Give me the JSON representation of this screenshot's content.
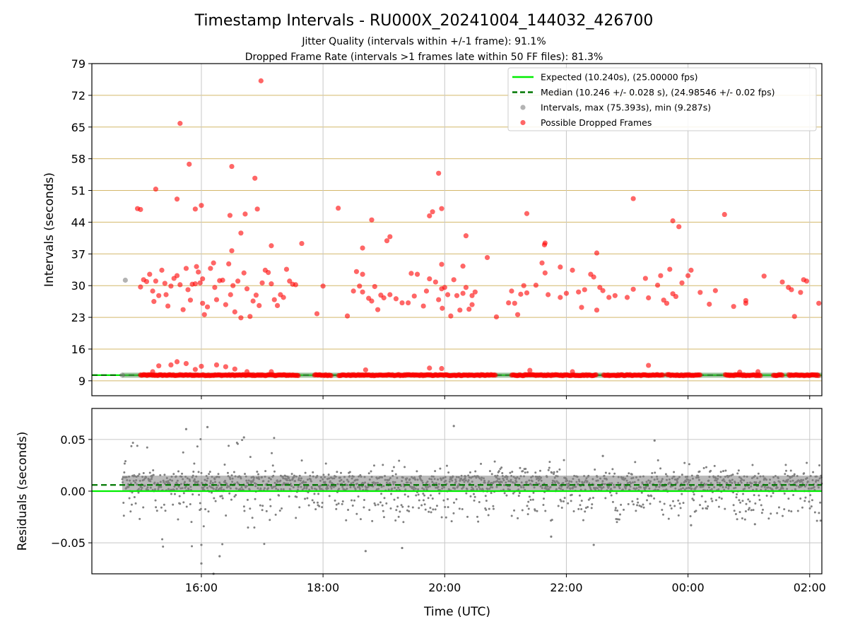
{
  "colors": {
    "expected": "#00ee00",
    "median": "#007700",
    "intervals": "#808080",
    "dropped": "#ff0000",
    "hgrid_top": "#d4b86a",
    "grid": "#c8c8c8",
    "band": "#4f8f4f"
  },
  "chart_data": [
    {
      "type": "scatter",
      "title": "Timestamp Intervals - RU000X_20241004_144032_426700",
      "subtitle_lines": [
        "Jitter Quality (intervals within +/-1 frame): 91.1%",
        "Dropped Frame Rate (intervals >1 frames late within 50 FF files): 81.3%"
      ],
      "xlabel": "",
      "ylabel": "Intervals (seconds)",
      "x_range_hours": [
        14.2,
        26.2
      ],
      "ylim": [
        5.7,
        79
      ],
      "yticks": [
        9,
        16,
        23,
        30,
        37,
        44,
        51,
        58,
        65,
        72,
        79
      ],
      "grid": "horizontal lines at y ticks, vertical lines at x ticks",
      "legend_position": "upper right",
      "legend": [
        {
          "kind": "line",
          "label": "Expected (10.240s), (25.00000 fps)"
        },
        {
          "kind": "dashed",
          "label": "Median (10.246 +/- 0.028 s), (24.98546 +/- 0.02 fps)"
        },
        {
          "kind": "dot-gray",
          "label": "Intervals, max (75.393s), min (9.287s)"
        },
        {
          "kind": "dot-red",
          "label": "Possible Dropped Frames"
        }
      ],
      "expected": 10.24,
      "median": 10.246,
      "median_line_range_hours": [
        14.2,
        24.6
      ],
      "baseline_gaps_hours": [
        [
          17.6,
          17.85
        ],
        [
          18.15,
          18.25
        ],
        [
          20.85,
          21.1
        ],
        [
          22.5,
          22.6
        ],
        [
          23.6,
          23.65
        ],
        [
          24.2,
          24.6
        ],
        [
          25.2,
          25.4
        ],
        [
          25.55,
          25.65
        ]
      ],
      "series": [
        {
          "name": "Intervals",
          "points": [
            [
              14.75,
              31.2
            ],
            [
              14.7,
              10.24
            ]
          ]
        },
        {
          "name": "Possible Dropped Frames",
          "points": [
            [
              14.95,
              47.0
            ],
            [
              15.0,
              46.8
            ],
            [
              15.25,
              51.3
            ],
            [
              15.6,
              49.1
            ],
            [
              15.8,
              56.8
            ],
            [
              15.9,
              46.9
            ],
            [
              16.0,
              47.7
            ],
            [
              15.65,
              65.8
            ],
            [
              16.5,
              56.3
            ],
            [
              16.88,
              53.7
            ],
            [
              16.98,
              75.2
            ],
            [
              16.47,
              45.5
            ],
            [
              16.72,
              45.8
            ],
            [
              16.92,
              46.9
            ],
            [
              16.65,
              41.6
            ],
            [
              16.5,
              37.7
            ],
            [
              17.15,
              38.8
            ],
            [
              17.65,
              39.3
            ],
            [
              18.25,
              47.1
            ],
            [
              18.8,
              44.5
            ],
            [
              19.1,
              40.8
            ],
            [
              19.05,
              39.9
            ],
            [
              18.65,
              38.3
            ],
            [
              19.75,
              45.4
            ],
            [
              19.8,
              46.3
            ],
            [
              19.9,
              54.8
            ],
            [
              19.95,
              47.0
            ],
            [
              20.35,
              41.0
            ],
            [
              20.7,
              36.2
            ],
            [
              21.35,
              45.9
            ],
            [
              21.65,
              39.4
            ],
            [
              21.64,
              39.0
            ],
            [
              21.9,
              34.1
            ],
            [
              22.5,
              37.2
            ],
            [
              23.1,
              49.2
            ],
            [
              23.75,
              44.3
            ],
            [
              23.85,
              43.0
            ],
            [
              24.6,
              45.7
            ],
            [
              19.95,
              34.7
            ],
            [
              20.3,
              34.3
            ],
            [
              15.0,
              29.7
            ],
            [
              15.05,
              31.3
            ],
            [
              15.1,
              30.9
            ],
            [
              15.15,
              32.5
            ],
            [
              15.2,
              28.8
            ],
            [
              15.22,
              26.5
            ],
            [
              15.25,
              31.0
            ],
            [
              15.3,
              27.8
            ],
            [
              15.35,
              33.4
            ],
            [
              15.4,
              30.5
            ],
            [
              15.45,
              25.5
            ],
            [
              15.5,
              29.9
            ],
            [
              15.55,
              31.6
            ],
            [
              15.6,
              32.2
            ],
            [
              15.65,
              30.2
            ],
            [
              15.7,
              24.7
            ],
            [
              15.75,
              33.8
            ],
            [
              15.78,
              29.1
            ],
            [
              15.82,
              26.8
            ],
            [
              15.85,
              30.3
            ],
            [
              15.9,
              30.4
            ],
            [
              15.92,
              34.2
            ],
            [
              15.95,
              33.0
            ],
            [
              15.98,
              30.6
            ],
            [
              16.02,
              26.1
            ],
            [
              16.05,
              23.6
            ],
            [
              16.1,
              25.3
            ],
            [
              16.15,
              33.8
            ],
            [
              16.2,
              35.0
            ],
            [
              16.25,
              26.9
            ],
            [
              16.3,
              31.1
            ],
            [
              16.35,
              31.2
            ],
            [
              16.4,
              25.8
            ],
            [
              16.45,
              34.8
            ],
            [
              16.48,
              28.0
            ],
            [
              16.52,
              30.0
            ],
            [
              16.55,
              24.2
            ],
            [
              16.6,
              31.0
            ],
            [
              16.65,
              22.9
            ],
            [
              16.7,
              32.8
            ],
            [
              16.75,
              29.3
            ],
            [
              16.8,
              23.2
            ],
            [
              16.85,
              26.6
            ],
            [
              16.9,
              27.9
            ],
            [
              16.95,
              25.6
            ],
            [
              17.0,
              30.6
            ],
            [
              17.05,
              33.4
            ],
            [
              17.1,
              32.9
            ],
            [
              17.15,
              30.4
            ],
            [
              17.2,
              26.9
            ],
            [
              17.25,
              25.6
            ],
            [
              17.3,
              28.0
            ],
            [
              17.35,
              27.4
            ],
            [
              17.4,
              33.6
            ],
            [
              17.45,
              31.0
            ],
            [
              17.5,
              30.3
            ],
            [
              17.55,
              30.2
            ],
            [
              16.02,
              31.5
            ],
            [
              15.42,
              28.0
            ],
            [
              16.22,
              29.6
            ],
            [
              17.9,
              23.8
            ],
            [
              18.0,
              29.9
            ],
            [
              18.4,
              23.3
            ],
            [
              18.5,
              28.8
            ],
            [
              18.55,
              33.1
            ],
            [
              18.6,
              29.9
            ],
            [
              18.65,
              32.5
            ],
            [
              18.65,
              28.6
            ],
            [
              18.75,
              27.2
            ],
            [
              18.8,
              26.6
            ],
            [
              18.85,
              29.8
            ],
            [
              18.9,
              24.7
            ],
            [
              18.95,
              27.9
            ],
            [
              19.0,
              27.3
            ],
            [
              19.1,
              28.0
            ],
            [
              19.2,
              27.1
            ],
            [
              19.3,
              26.2
            ],
            [
              19.4,
              26.2
            ],
            [
              19.45,
              32.7
            ],
            [
              19.5,
              27.7
            ],
            [
              19.55,
              32.5
            ],
            [
              19.65,
              25.5
            ],
            [
              19.7,
              28.8
            ],
            [
              19.75,
              31.5
            ],
            [
              19.85,
              30.8
            ],
            [
              19.9,
              26.9
            ],
            [
              19.95,
              29.3
            ],
            [
              20.0,
              29.6
            ],
            [
              20.05,
              28.0
            ],
            [
              20.1,
              23.3
            ],
            [
              20.15,
              31.3
            ],
            [
              20.2,
              27.8
            ],
            [
              20.25,
              24.6
            ],
            [
              20.3,
              28.3
            ],
            [
              20.35,
              29.6
            ],
            [
              20.4,
              24.8
            ],
            [
              20.45,
              27.8
            ],
            [
              20.45,
              25.8
            ],
            [
              20.5,
              28.6
            ],
            [
              19.96,
              25.0
            ],
            [
              20.85,
              23.1
            ],
            [
              21.05,
              26.2
            ],
            [
              21.1,
              28.8
            ],
            [
              21.2,
              23.6
            ],
            [
              21.25,
              28.1
            ],
            [
              21.3,
              30.0
            ],
            [
              21.35,
              28.4
            ],
            [
              21.5,
              30.1
            ],
            [
              21.6,
              35.0
            ],
            [
              21.65,
              32.8
            ],
            [
              21.7,
              28.0
            ],
            [
              21.9,
              27.4
            ],
            [
              22.0,
              28.3
            ],
            [
              22.1,
              33.4
            ],
            [
              22.2,
              28.6
            ],
            [
              22.25,
              25.2
            ],
            [
              22.3,
              29.1
            ],
            [
              22.4,
              32.5
            ],
            [
              22.45,
              31.9
            ],
            [
              22.5,
              24.6
            ],
            [
              22.55,
              29.6
            ],
            [
              22.6,
              28.9
            ],
            [
              22.7,
              27.4
            ],
            [
              22.8,
              27.8
            ],
            [
              23.0,
              27.4
            ],
            [
              23.1,
              29.2
            ],
            [
              23.3,
              31.6
            ],
            [
              23.5,
              30.1
            ],
            [
              23.55,
              32.2
            ],
            [
              23.6,
              26.8
            ],
            [
              23.65,
              26.1
            ],
            [
              23.7,
              33.6
            ],
            [
              23.75,
              28.2
            ],
            [
              23.8,
              27.6
            ],
            [
              23.9,
              30.6
            ],
            [
              24.0,
              32.2
            ],
            [
              24.05,
              33.4
            ],
            [
              24.2,
              28.5
            ],
            [
              24.35,
              25.9
            ],
            [
              24.45,
              28.9
            ],
            [
              21.15,
              26.1
            ],
            [
              23.35,
              27.3
            ],
            [
              24.75,
              25.4
            ],
            [
              24.95,
              26.1
            ],
            [
              24.95,
              26.7
            ],
            [
              25.25,
              32.1
            ],
            [
              25.55,
              30.8
            ],
            [
              25.65,
              29.6
            ],
            [
              25.7,
              29.1
            ],
            [
              25.75,
              23.2
            ],
            [
              25.85,
              28.5
            ],
            [
              25.9,
              31.3
            ],
            [
              25.95,
              31.0
            ],
            [
              26.15,
              26.1
            ],
            [
              15.3,
              12.3
            ],
            [
              15.5,
              12.5
            ],
            [
              15.6,
              13.2
            ],
            [
              15.75,
              12.8
            ],
            [
              16.0,
              12.2
            ],
            [
              16.25,
              12.5
            ],
            [
              16.4,
              12.1
            ],
            [
              16.55,
              11.6
            ],
            [
              19.75,
              11.8
            ],
            [
              19.95,
              11.7
            ],
            [
              21.4,
              11.3
            ],
            [
              23.35,
              12.4
            ],
            [
              18.7,
              11.4
            ],
            [
              22.1,
              11.0
            ],
            [
              15.2,
              11.0
            ],
            [
              15.9,
              11.5
            ],
            [
              17.15,
              11.0
            ],
            [
              16.75,
              11.0
            ],
            [
              25.15,
              11.0
            ],
            [
              24.85,
              10.9
            ]
          ]
        }
      ]
    },
    {
      "type": "scatter",
      "title": "",
      "xlabel": "Time (UTC)",
      "ylabel": "Residuals (seconds)",
      "x_range_hours": [
        14.2,
        26.2
      ],
      "ylim": [
        -0.08,
        0.08
      ],
      "yticks": [
        -0.05,
        0.0,
        0.05
      ],
      "ytick_labels": [
        "−0.05",
        "0.00",
        "0.05"
      ],
      "xticks_hours": [
        16,
        18,
        20,
        22,
        24,
        26
      ],
      "xtick_labels": [
        "16:00",
        "18:00",
        "20:00",
        "22:00",
        "00:00",
        "02:00"
      ],
      "expected": 0.0,
      "median": 0.006,
      "residual_time_range_hours": [
        14.7,
        26.2
      ],
      "residual_band": [
        0.0,
        0.015
      ],
      "notable_points": [
        [
          15.75,
          0.06
        ],
        [
          16.1,
          0.062
        ],
        [
          20.15,
          0.063
        ],
        [
          16.7,
          0.052
        ],
        [
          23.45,
          0.049
        ],
        [
          22.6,
          0.034
        ],
        [
          18.7,
          -0.058
        ],
        [
          19.3,
          -0.055
        ],
        [
          16.0,
          -0.07
        ],
        [
          16.2,
          -0.08
        ],
        [
          16.3,
          -0.063
        ],
        [
          22.45,
          -0.052
        ],
        [
          25.1,
          -0.032
        ],
        [
          24.05,
          -0.033
        ],
        [
          21.75,
          -0.044
        ],
        [
          16.0,
          -0.052
        ]
      ]
    }
  ]
}
